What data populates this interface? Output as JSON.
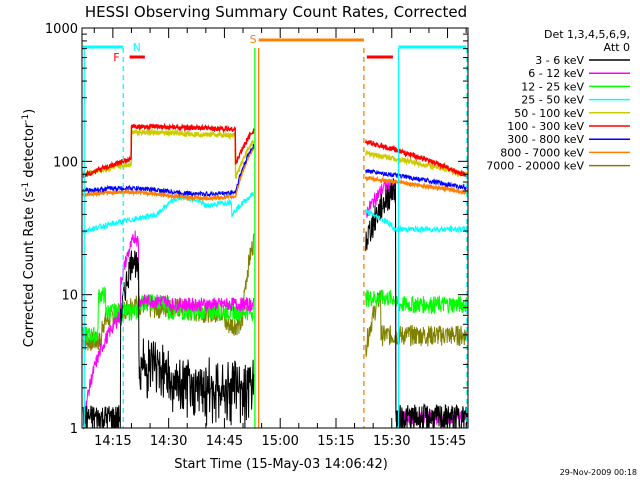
{
  "chart_data": {
    "type": "line",
    "title": "HESSI Observing Summary Count Rates, Corrected",
    "xlabel": "Start Time (15-May-03 14:06:42)",
    "ylabel_main": "Corrected Count Rate (s",
    "ylabel_sup": "-1",
    "ylabel_end": " detector",
    "ylabel_sup2": "-1",
    "ylabel_close": ")",
    "y_scale": "log",
    "ylim": [
      1,
      1000
    ],
    "y_ticks": [
      {
        "value": 1,
        "label": "1"
      },
      {
        "value": 10,
        "label": "10"
      },
      {
        "value": 100,
        "label": "100"
      },
      {
        "value": 1000,
        "label": "1000"
      }
    ],
    "xlim_minutes": [
      6.7,
      47.5
    ],
    "x_ticks": [
      {
        "minute": 15,
        "label": "14:15"
      },
      {
        "minute": 30,
        "label": "14:30"
      },
      {
        "minute": 45,
        "label": "14:45"
      },
      {
        "minute": 60,
        "label": "15:00"
      },
      {
        "minute": 75,
        "label": "15:15"
      },
      {
        "minute": 90,
        "label": "15:30"
      },
      {
        "minute": 105,
        "label": "15:45"
      }
    ],
    "x_tick_minutes_real": [
      15,
      30,
      45,
      60,
      75,
      90,
      105
    ],
    "legend_header": [
      "Det 1,3,4,5,6,9,",
      "Att 0"
    ],
    "series": [
      {
        "name": "3 - 6 keV",
        "color": "#000000"
      },
      {
        "name": "6 - 12 keV",
        "color": "#ff00ff"
      },
      {
        "name": "12 - 25 keV",
        "color": "#00ff00"
      },
      {
        "name": "25 - 50 keV",
        "color": "#00ffff"
      },
      {
        "name": "50 - 100 keV",
        "color": "#cccc00"
      },
      {
        "name": "100 - 300 keV",
        "color": "#ff0000"
      },
      {
        "name": "300 - 800 keV",
        "color": "#0000ff"
      },
      {
        "name": "800 - 7000 keV",
        "color": "#ff8000"
      },
      {
        "name": "7000 - 20000 keV",
        "color": "#808000"
      }
    ],
    "flags": [
      {
        "label": "N",
        "color": "#00ffff"
      },
      {
        "label": "F",
        "color": "#ff0000"
      },
      {
        "label": "S",
        "color": "#ff8000"
      }
    ],
    "footer_date": "29-Nov-2009 00:18"
  }
}
